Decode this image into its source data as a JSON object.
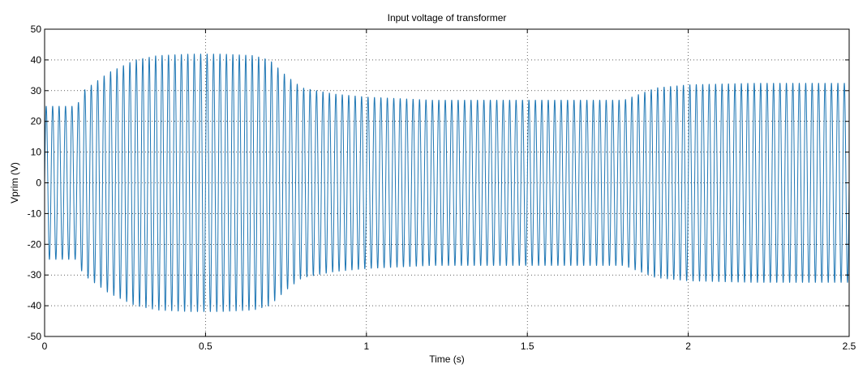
{
  "chart_data": {
    "type": "line",
    "title": "Input voltage of transformer",
    "xlabel": "Time (s)",
    "ylabel": "Vprim (V)",
    "xlim": [
      0,
      2.5
    ],
    "ylim": [
      -50,
      50
    ],
    "xticks": [
      0,
      0.5,
      1,
      1.5,
      2,
      2.5
    ],
    "xtick_labels": [
      "0",
      "0.5",
      "1",
      "1.5",
      "2",
      "2.5"
    ],
    "yticks": [
      -50,
      -40,
      -30,
      -20,
      -10,
      0,
      10,
      20,
      30,
      40,
      50
    ],
    "ytick_labels": [
      "-50",
      "-40",
      "-30",
      "-20",
      "-10",
      "0",
      "10",
      "20",
      "30",
      "40",
      "50"
    ],
    "grid": true,
    "line_color": "#1f77b4",
    "signal_frequency_hz": 50,
    "amplitude_envelope": {
      "t": [
        0,
        0.1,
        0.12,
        0.2,
        0.28,
        0.35,
        0.45,
        0.55,
        0.65,
        0.7,
        0.75,
        0.8,
        0.9,
        1.0,
        1.2,
        1.4,
        1.6,
        1.8,
        1.85,
        1.9,
        2.0,
        2.2,
        2.4,
        2.5
      ],
      "amplitude": [
        25,
        25,
        30,
        36,
        40,
        41.5,
        42,
        42,
        41.5,
        40,
        35,
        31,
        29,
        28,
        27,
        27,
        27,
        27,
        29,
        31,
        32,
        32.5,
        32.5,
        32.5
      ]
    }
  }
}
